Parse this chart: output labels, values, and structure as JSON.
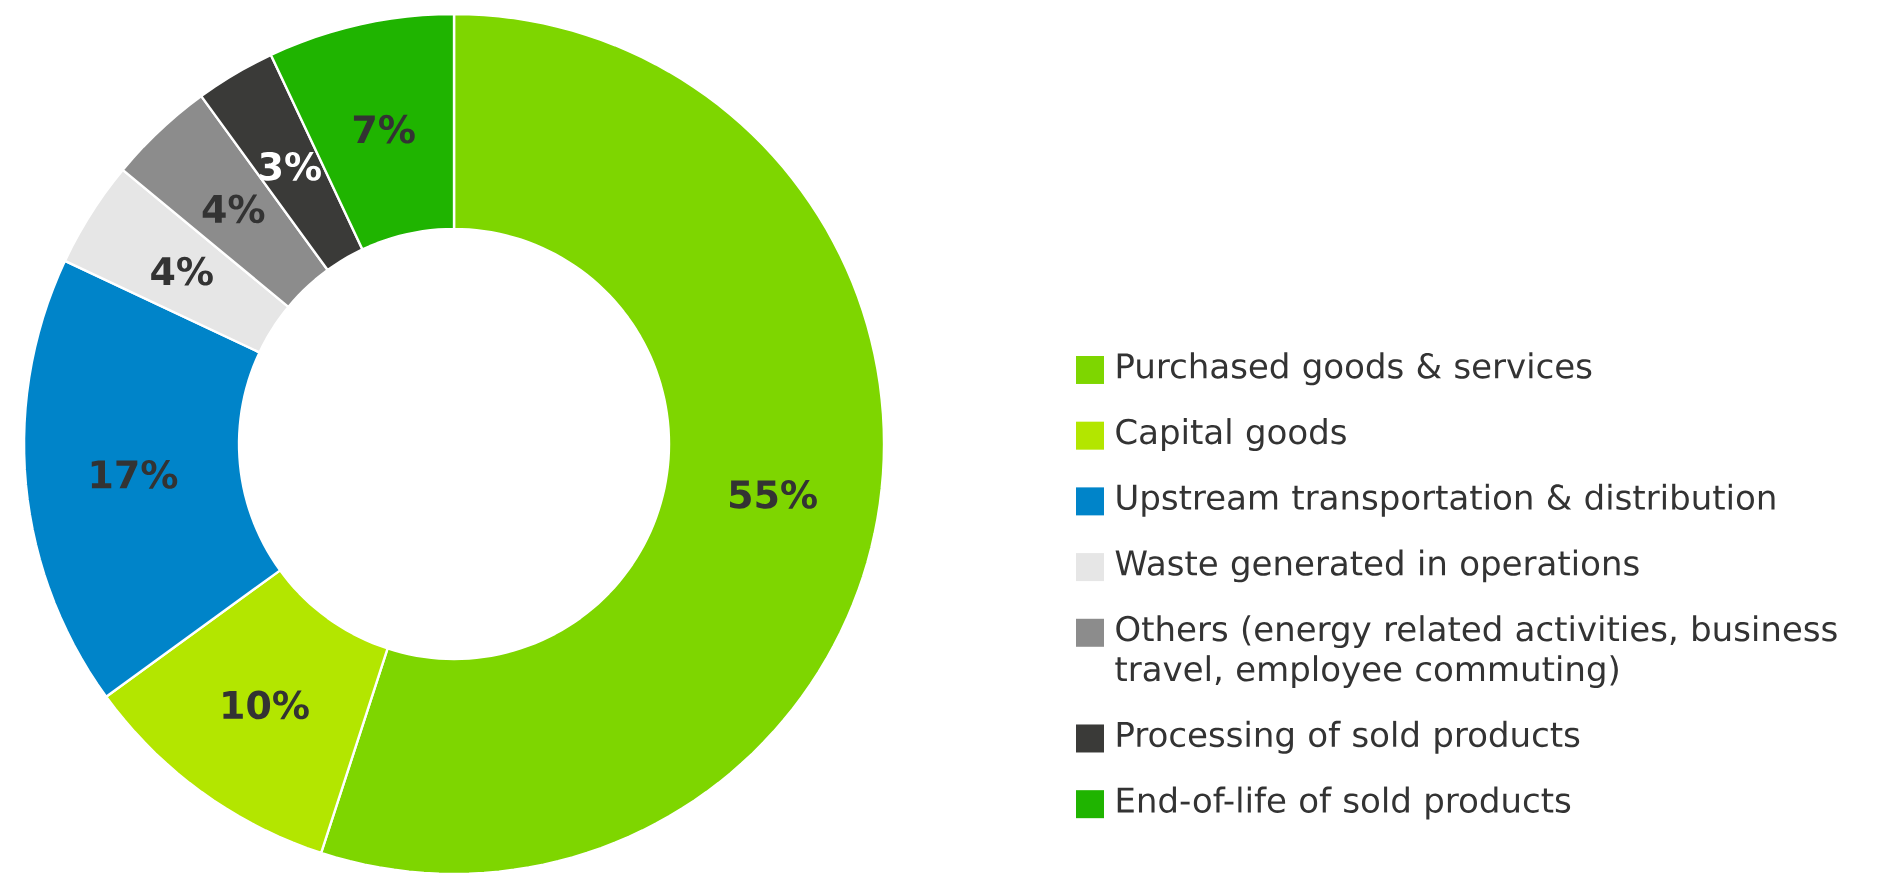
{
  "chart_data": {
    "type": "donut",
    "categories": [
      "Purchased goods & services",
      "Capital goods",
      "Upstream transportation & distribution",
      "Waste generated in operations",
      "Others (energy related activities, business travel, employee commuting)",
      "Processing of sold products",
      "End-of-life of sold products"
    ],
    "values": [
      55,
      10,
      17,
      4,
      4,
      3,
      7
    ],
    "value_labels": [
      "55%",
      "10%",
      "17%",
      "4%",
      "4%",
      "3%",
      "7%"
    ],
    "colors": [
      "#7ed600",
      "#b3e600",
      "#0084c9",
      "#e6e6e6",
      "#8c8c8c",
      "#3a3a38",
      "#1fb400"
    ],
    "legend": "right"
  }
}
